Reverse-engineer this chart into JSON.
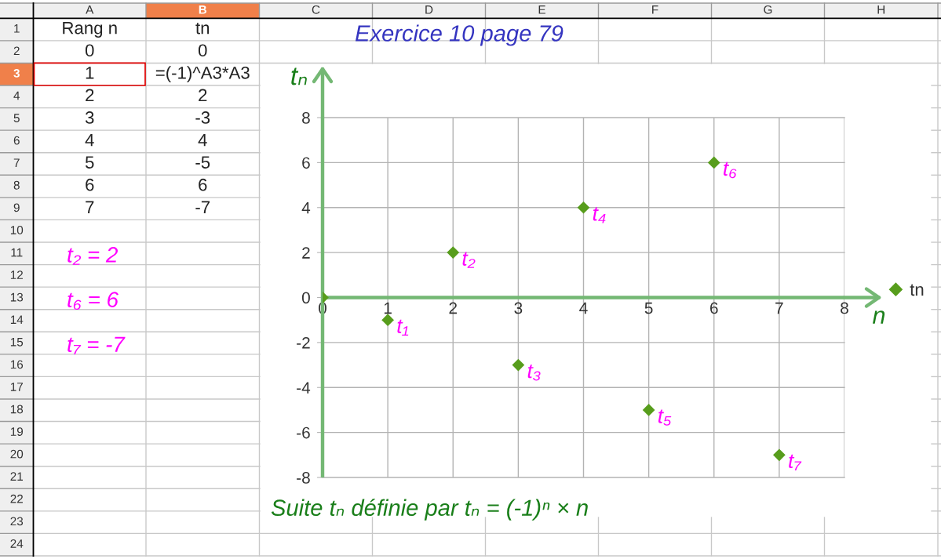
{
  "chart_data": {
    "type": "scatter",
    "title": "Exercice 10 page 79",
    "xlabel": "n",
    "ylabel": "tₙ",
    "x": [
      0,
      1,
      2,
      3,
      4,
      5,
      6,
      7
    ],
    "series": [
      {
        "name": "tn",
        "color": "#579d1c",
        "values": [
          0,
          -1,
          2,
          -3,
          4,
          -5,
          6,
          -7
        ]
      }
    ],
    "xlim": [
      0,
      8
    ],
    "ylim": [
      -8,
      8
    ],
    "xticks": [
      0,
      1,
      2,
      3,
      4,
      5,
      6,
      7,
      8
    ],
    "yticks": [
      -8,
      -6,
      -4,
      -2,
      0,
      2,
      4,
      6,
      8
    ],
    "grid": true,
    "legend": "right",
    "marker": "diamond",
    "annotations": [
      "A",
      "B",
      "C",
      "D",
      "E",
      "F",
      "G",
      "H",
      "1",
      "2",
      "3",
      "4",
      "5",
      "6",
      "7",
      "8",
      "9",
      "10",
      "11",
      "12",
      "13",
      "14",
      "15",
      "16",
      "17",
      "18",
      "19",
      "20",
      "21",
      "22",
      "23",
      "24",
      "Rang n",
      "tn",
      "0",
      "0",
      "1",
      "=(-1)^A3*A3",
      "2",
      "2",
      "3",
      "-3",
      "4",
      "4",
      "5",
      "-5",
      "6",
      "6",
      "7",
      "-7",
      "t₂ = 2",
      "t₆ = 6",
      "t₇ = -7",
      "Suite tₙ définie par tₙ = (-1)ⁿ × n",
      {
        "text": "t₁",
        "x": 1,
        "y": -1
      },
      {
        "text": "t₂",
        "x": 2,
        "y": 2
      },
      {
        "text": "t₃",
        "x": 3,
        "y": -3
      },
      {
        "text": "t₄",
        "x": 4,
        "y": 4
      },
      {
        "text": "t₅",
        "x": 5,
        "y": -5
      },
      {
        "text": "t₆",
        "x": 6,
        "y": 6
      },
      {
        "text": "t₇",
        "x": 7,
        "y": -7
      }
    ]
  }
}
